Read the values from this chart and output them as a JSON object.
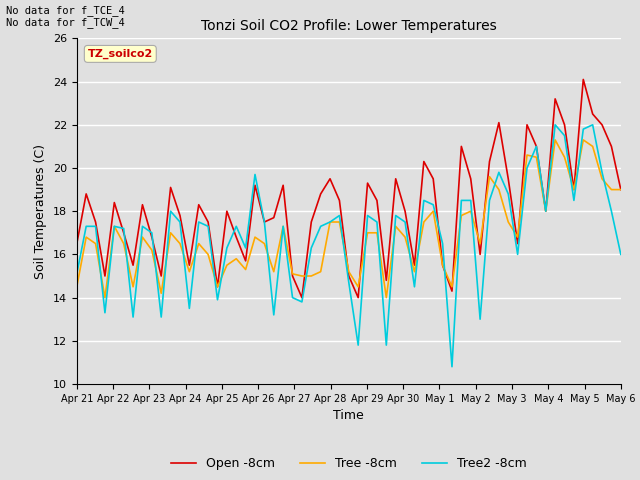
{
  "title": "Tonzi Soil CO2 Profile: Lower Temperatures",
  "xlabel": "Time",
  "ylabel": "Soil Temperatures (C)",
  "ylim": [
    10,
    26
  ],
  "yticks": [
    10,
    12,
    14,
    16,
    18,
    20,
    22,
    24,
    26
  ],
  "annotation_text": "No data for f_TCE_4\nNo data for f_TCW_4",
  "box_label": "TZ_soilco2",
  "legend_entries": [
    "Open -8cm",
    "Tree -8cm",
    "Tree2 -8cm"
  ],
  "line_colors": [
    "#dd0000",
    "#ffaa00",
    "#00ccdd"
  ],
  "xtick_labels": [
    "Apr 21",
    "Apr 22",
    "Apr 23",
    "Apr 24",
    "Apr 25",
    "Apr 26",
    "Apr 27",
    "Apr 28",
    "Apr 29",
    "Apr 30",
    "May 1",
    "May 2",
    "May 3",
    "May 4",
    "May 5",
    "May 6"
  ],
  "background_color": "#e0e0e0",
  "plot_bg_color": "#e0e0e0",
  "grid_color": "#ffffff",
  "open_data": [
    16.5,
    18.8,
    17.5,
    15.0,
    18.4,
    17.0,
    15.5,
    18.3,
    16.8,
    15.0,
    19.1,
    17.8,
    15.5,
    18.3,
    17.5,
    14.5,
    18.0,
    16.8,
    15.7,
    19.2,
    17.5,
    17.7,
    19.2,
    15.0,
    14.0,
    17.5,
    18.8,
    19.5,
    18.5,
    15.0,
    14.0,
    19.3,
    18.5,
    14.8,
    19.5,
    18.0,
    15.5,
    20.3,
    19.5,
    15.5,
    14.3,
    21.0,
    19.5,
    16.0,
    20.3,
    22.1,
    19.5,
    16.5,
    22.0,
    21.0,
    18.0,
    23.2,
    22.0,
    19.0,
    24.1,
    22.5,
    22.0,
    21.0,
    19.0
  ],
  "tree_data": [
    14.5,
    16.8,
    16.5,
    14.0,
    17.3,
    16.5,
    14.5,
    16.8,
    16.2,
    14.2,
    17.0,
    16.5,
    15.2,
    16.5,
    16.0,
    14.5,
    15.5,
    15.8,
    15.3,
    16.8,
    16.5,
    15.2,
    17.3,
    15.1,
    15.0,
    15.0,
    15.2,
    17.5,
    17.5,
    15.2,
    14.5,
    17.0,
    17.0,
    14.0,
    17.3,
    16.8,
    15.2,
    17.5,
    18.0,
    15.5,
    14.5,
    17.8,
    18.0,
    16.5,
    19.6,
    19.0,
    17.5,
    16.8,
    20.6,
    20.5,
    18.0,
    21.3,
    20.5,
    19.0,
    21.3,
    21.0,
    19.5,
    19.0,
    19.0
  ],
  "tree2_data": [
    15.1,
    17.3,
    17.3,
    13.3,
    17.3,
    17.2,
    13.1,
    17.3,
    17.0,
    13.1,
    18.0,
    17.5,
    13.5,
    17.5,
    17.3,
    13.9,
    16.3,
    17.3,
    16.3,
    19.7,
    17.5,
    13.2,
    17.3,
    14.0,
    13.8,
    16.3,
    17.3,
    17.5,
    17.8,
    14.7,
    11.8,
    17.8,
    17.5,
    11.8,
    17.8,
    17.5,
    14.5,
    18.5,
    18.3,
    16.5,
    10.8,
    18.5,
    18.5,
    13.0,
    18.5,
    19.8,
    18.8,
    16.0,
    20.0,
    21.0,
    18.0,
    22.0,
    21.5,
    18.5,
    21.8,
    22.0,
    19.8,
    18.0,
    16.0
  ]
}
